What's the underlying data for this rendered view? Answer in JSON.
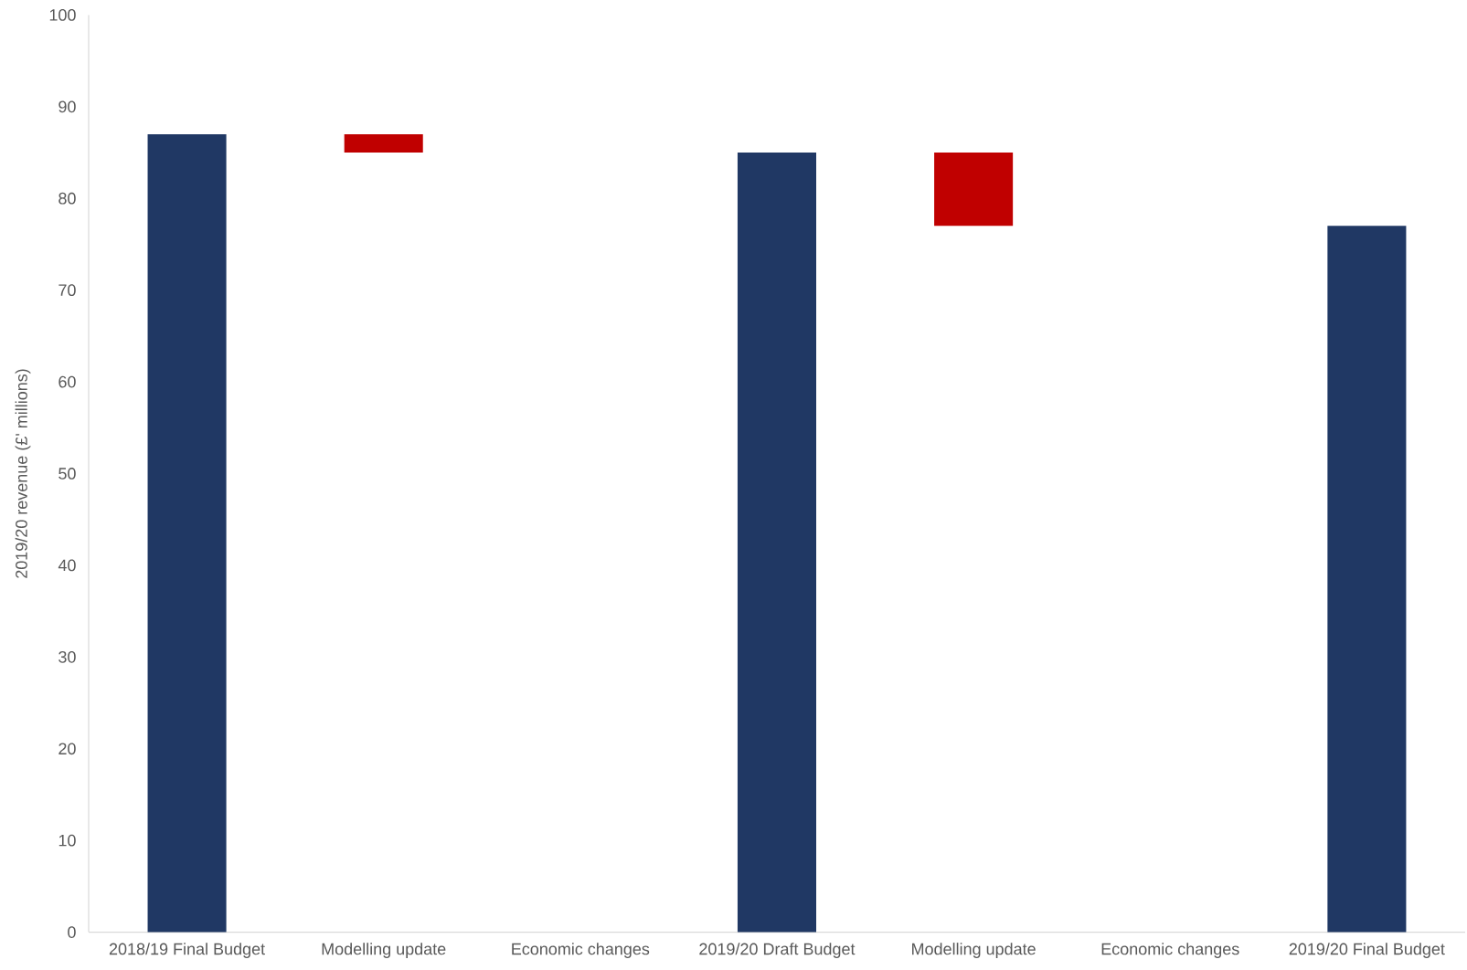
{
  "chart_data": {
    "type": "bar",
    "ylabel": "2019/20 revenue (£' millions)",
    "categories": [
      "2018/19 Final Budget",
      "Modelling update",
      "Economic changes",
      "2019/20 Draft Budget",
      "Modelling update",
      "Economic changes",
      "2019/20 Final Budget"
    ],
    "values": [
      87,
      -2,
      null,
      85,
      -8,
      null,
      77
    ],
    "base": [
      0,
      87,
      null,
      0,
      85,
      null,
      0
    ],
    "colors": [
      "#203864",
      "#c00000",
      null,
      "#203864",
      "#c00000",
      null,
      "#203864"
    ],
    "ylim": [
      0,
      100
    ],
    "yticks": [
      0,
      10,
      20,
      30,
      40,
      50,
      60,
      70,
      80,
      90,
      100
    ],
    "grid": false
  }
}
